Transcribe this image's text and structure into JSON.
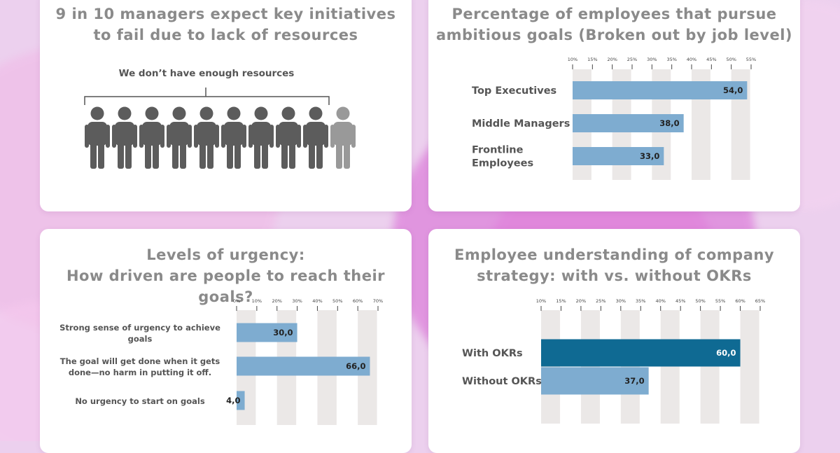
{
  "colors": {
    "bar_light": "#7eacd0",
    "bar_dark": "#0f6a93",
    "column_bg": "#ebe8e7",
    "title": "#8a8a8a",
    "label": "#555555",
    "person_dark": "#5c5c5c",
    "person_light": "#999999"
  },
  "cards": {
    "resources": {
      "title_line1": "9 in 10 managers expect key initiatives",
      "title_line2": "to fail due to lack of resources",
      "caption": "We don’t have enough resources",
      "people_total": 10,
      "people_highlighted": 9,
      "icon": "person-icon"
    },
    "ambition": {
      "title_line1": "Percentage of employees that pursue",
      "title_line2": "ambitious goals (Broken out by job level)"
    },
    "urgency": {
      "title_line1": "Levels of urgency:",
      "title_line2": "How driven are people to reach their goals?"
    },
    "okrs": {
      "title_line1": "Employee understanding of company",
      "title_line2": "strategy:  with vs. without OKRs"
    }
  },
  "chart_data": [
    {
      "id": "ambition",
      "type": "bar",
      "orientation": "horizontal",
      "categories": [
        [
          "Top Executives"
        ],
        [
          "Middle Managers"
        ],
        [
          "Frontline",
          "Employees"
        ]
      ],
      "values": [
        54.0,
        38.0,
        33.0
      ],
      "value_labels": [
        "54,0",
        "38,0",
        "33,0"
      ],
      "xlim": [
        10,
        55
      ],
      "ticks": [
        "10%",
        "15%",
        "20%",
        "25%",
        "30%",
        "35%",
        "40%",
        "45%",
        "50%",
        "55%"
      ],
      "tick_values": [
        10,
        15,
        20,
        25,
        30,
        35,
        40,
        45,
        50,
        55
      ]
    },
    {
      "id": "urgency",
      "type": "bar",
      "orientation": "horizontal",
      "categories": [
        [
          "Strong sense of urgency to achieve",
          "goals"
        ],
        [
          "The goal will get done when it gets",
          "done—no harm in putting it off."
        ],
        [
          "No urgency to start on goals"
        ]
      ],
      "values": [
        30.0,
        66.0,
        4.0
      ],
      "value_labels": [
        "30,0",
        "66,0",
        "4,0"
      ],
      "xlim": [
        0,
        70
      ],
      "ticks": [
        "0%",
        "10%",
        "20%",
        "30%",
        "40%",
        "50%",
        "60%",
        "70%"
      ],
      "tick_values": [
        0,
        10,
        20,
        30,
        40,
        50,
        60,
        70
      ]
    },
    {
      "id": "okrs",
      "type": "bar",
      "orientation": "horizontal",
      "categories": [
        [
          "With OKRs"
        ],
        [
          "Without OKRs"
        ]
      ],
      "values": [
        60.0,
        37.0
      ],
      "value_labels": [
        "60,0",
        "37,0"
      ],
      "xlim": [
        10,
        65
      ],
      "ticks": [
        "10%",
        "15%",
        "20%",
        "25%",
        "30%",
        "35%",
        "40%",
        "45%",
        "50%",
        "55%",
        "60%",
        "65%"
      ],
      "tick_values": [
        10,
        15,
        20,
        25,
        30,
        35,
        40,
        45,
        50,
        55,
        60,
        65
      ]
    }
  ]
}
